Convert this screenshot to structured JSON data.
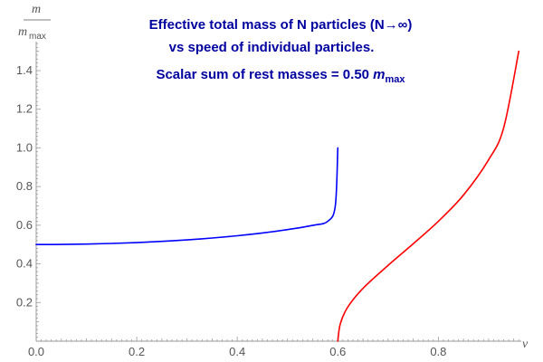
{
  "chart_data": {
    "type": "line",
    "title_lines": [
      "Effective total mass of N particles (N→∞)",
      "vs speed of individual particles.",
      "Scalar sum of rest masses =  0.50 "
    ],
    "title_symbol": "m",
    "title_symbol_sub": "max",
    "xlabel": "v",
    "ylabel_num": "m",
    "ylabel_den": "m",
    "ylabel_den_sub": "max",
    "xlim": [
      0,
      0.965
    ],
    "ylim": [
      0,
      1.55
    ],
    "x_ticks": [
      0.0,
      0.2,
      0.4,
      0.6,
      0.8
    ],
    "x_tick_labels": [
      "0.0",
      "0.2",
      "0.4",
      "0.6",
      "0.8"
    ],
    "y_ticks": [
      0.2,
      0.4,
      0.6,
      0.8,
      1.0,
      1.2,
      1.4
    ],
    "y_tick_labels": [
      "0.2",
      "0.4",
      "0.6",
      "0.8",
      "1.0",
      "1.2",
      "1.4"
    ],
    "grid": false,
    "series": [
      {
        "color": "#0000ff",
        "x": [
          0.0,
          0.05,
          0.1,
          0.15,
          0.2,
          0.25,
          0.3,
          0.35,
          0.4,
          0.45,
          0.5,
          0.55,
          0.58,
          0.595,
          0.6
        ],
        "y": [
          0.5,
          0.5006,
          0.5025,
          0.5057,
          0.5103,
          0.5164,
          0.5241,
          0.5338,
          0.5455,
          0.5598,
          0.5774,
          0.5992,
          0.6202,
          0.6998,
          1.0
        ]
      },
      {
        "color": "#ff0000",
        "x": [
          0.6,
          0.605,
          0.62,
          0.65,
          0.7,
          0.75,
          0.8,
          0.85,
          0.9,
          0.93,
          0.96
        ],
        "y": [
          0.0,
          0.0898,
          0.1774,
          0.2733,
          0.3922,
          0.504,
          0.6202,
          0.756,
          0.9387,
          1.1044,
          1.5
        ]
      }
    ]
  }
}
